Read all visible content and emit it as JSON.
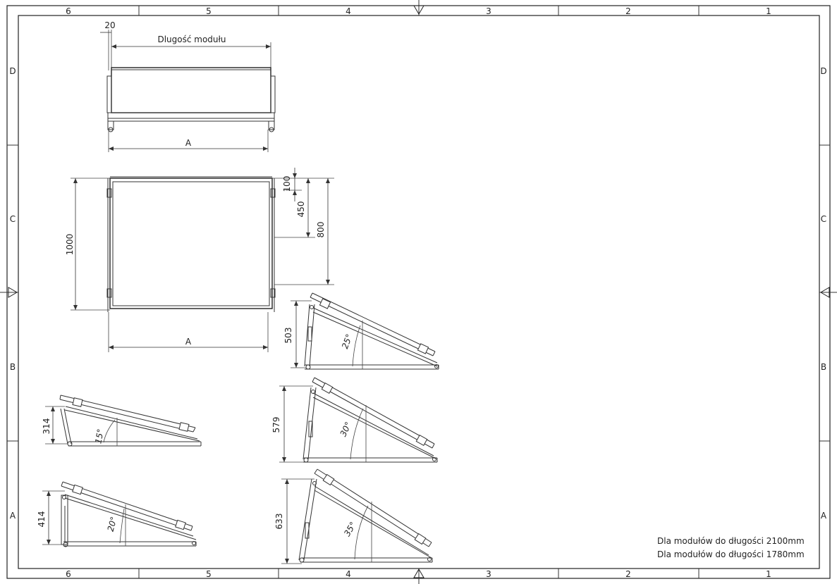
{
  "grid": {
    "columns": [
      "6",
      "5",
      "4",
      "3",
      "2",
      "1"
    ],
    "rows": [
      "D",
      "C",
      "B",
      "A"
    ]
  },
  "top_view": {
    "module_length_label": "Dlugość modułu",
    "dim_20": "20",
    "dim_a": "A"
  },
  "front_view": {
    "dim_1000": "1000",
    "dim_100": "100",
    "dim_450": "450",
    "dim_800": "800",
    "dim_a": "A"
  },
  "side_views": [
    {
      "angle": "15°",
      "height": "314"
    },
    {
      "angle": "20°",
      "height": "414"
    },
    {
      "angle": "25°",
      "height": "503"
    },
    {
      "angle": "30°",
      "height": "579"
    },
    {
      "angle": "35°",
      "height": "633"
    }
  ],
  "notes": [
    "Dla modułów do długości 2100mm",
    "Dla modułów do długości 1780mm"
  ]
}
